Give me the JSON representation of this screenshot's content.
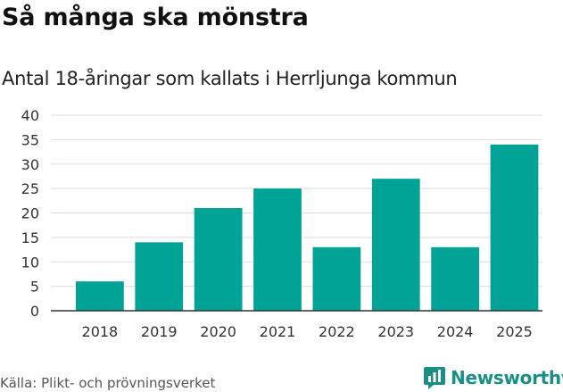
{
  "title": "Så många ska mönstra",
  "subtitle": "Antal 18-åringar som kallats i Herrljunga kommun",
  "source": "Källa: Plikt- och prövningsverket",
  "brand": {
    "name": "Newsworthy",
    "color": "#1a8f86"
  },
  "colors": {
    "bar": "#00a396",
    "grid": "#dddddd",
    "axis": "#333333",
    "tick_text": "#333333"
  },
  "chart_data": {
    "type": "bar",
    "categories": [
      "2018",
      "2019",
      "2020",
      "2021",
      "2022",
      "2023",
      "2024",
      "2025"
    ],
    "values": [
      6,
      14,
      21,
      25,
      13,
      27,
      13,
      34
    ],
    "yticks": [
      0,
      5,
      10,
      15,
      20,
      25,
      30,
      35,
      40
    ],
    "ylim": [
      0,
      40
    ],
    "grid": true,
    "xlabel": "",
    "ylabel": ""
  }
}
